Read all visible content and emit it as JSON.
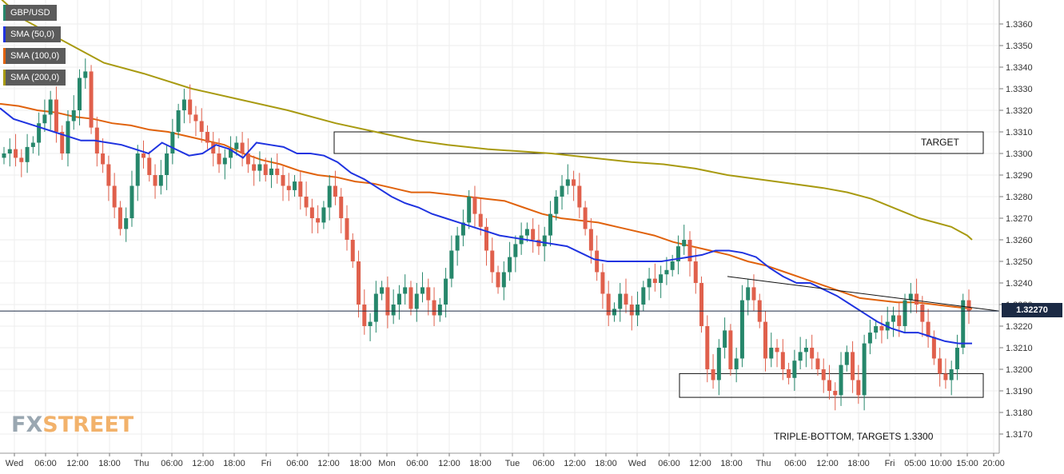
{
  "legend": {
    "symbol": "GBP/USD",
    "sma50": "SMA (50,0)",
    "sma100": "SMA (100,0)",
    "sma200": "SMA (200,0)"
  },
  "colors": {
    "up": "#26876b",
    "down": "#e0604c",
    "sma50": "#1f33e0",
    "sma100": "#e0620c",
    "sma200": "#a89a10",
    "price_line": "#1b2a44"
  },
  "logo": {
    "fx": "FX",
    "street": "STREET"
  },
  "current_price": "1.32270",
  "annotations": {
    "target_label": "TARGET",
    "pattern_label": "TRIPLE-BOTTOM, TARGETS 1.3300"
  },
  "chart_data": {
    "type": "candlestick",
    "symbol": "GBP/USD",
    "timeframe": "hourly",
    "ylim": [
      1.316,
      1.337
    ],
    "y_ticks": [
      "1.3170",
      "1.3180",
      "1.3190",
      "1.3200",
      "1.3210",
      "1.3220",
      "1.3230",
      "1.3240",
      "1.3250",
      "1.3260",
      "1.3270",
      "1.3280",
      "1.3290",
      "1.3300",
      "1.3310",
      "1.3320",
      "1.3330",
      "1.3340",
      "1.3350",
      "1.3360"
    ],
    "x_ticks": [
      "Wed",
      "06:00",
      "12:00",
      "18:00",
      "Thu",
      "06:00",
      "12:00",
      "18:00",
      "Fri",
      "06:00",
      "12:00",
      "18:00",
      "Mon",
      "06:00",
      "12:00",
      "18:00",
      "Tue",
      "06:00",
      "12:00",
      "18:00",
      "Wed",
      "06:00",
      "12:00",
      "18:00",
      "Thu",
      "06:00",
      "12:00",
      "18:00",
      "Fri",
      "05:00",
      "10:00",
      "15:00",
      "20:00"
    ],
    "grid": true,
    "last_price": 1.3227,
    "target_zone": [
      1.33,
      1.331
    ],
    "support_zone": [
      1.3187,
      1.3198
    ],
    "closes": [
      1.33,
      1.3302,
      1.3298,
      1.3296,
      1.3303,
      1.3305,
      1.3314,
      1.3318,
      1.3325,
      1.331,
      1.33,
      1.3315,
      1.332,
      1.3335,
      1.3338,
      1.3312,
      1.33,
      1.3295,
      1.3285,
      1.3275,
      1.3265,
      1.327,
      1.3285,
      1.33,
      1.3298,
      1.329,
      1.3285,
      1.329,
      1.33,
      1.331,
      1.332,
      1.3325,
      1.3318,
      1.3315,
      1.331,
      1.3305,
      1.33,
      1.3295,
      1.3298,
      1.3302,
      1.3305,
      1.33,
      1.3295,
      1.3292,
      1.3295,
      1.329,
      1.3293,
      1.329,
      1.3285,
      1.3283,
      1.3287,
      1.328,
      1.3275,
      1.327,
      1.3268,
      1.3275,
      1.3285,
      1.328,
      1.327,
      1.326,
      1.325,
      1.323,
      1.322,
      1.3222,
      1.3235,
      1.3238,
      1.3225,
      1.323,
      1.3235,
      1.3238,
      1.3228,
      1.3235,
      1.3238,
      1.3232,
      1.3225,
      1.323,
      1.3242,
      1.3255,
      1.3262,
      1.3268,
      1.328,
      1.3272,
      1.3266,
      1.3255,
      1.3245,
      1.3238,
      1.3245,
      1.3252,
      1.3258,
      1.3262,
      1.3265,
      1.326,
      1.3257,
      1.3262,
      1.3272,
      1.328,
      1.3285,
      1.3288,
      1.3285,
      1.3275,
      1.3265,
      1.3255,
      1.3245,
      1.3235,
      1.3225,
      1.3228,
      1.3235,
      1.323,
      1.3225,
      1.323,
      1.3238,
      1.3242,
      1.324,
      1.3244,
      1.3246,
      1.325,
      1.3257,
      1.326,
      1.325,
      1.324,
      1.322,
      1.32,
      1.3195,
      1.321,
      1.3218,
      1.32,
      1.3205,
      1.3232,
      1.3238,
      1.3232,
      1.3222,
      1.3205,
      1.321,
      1.3208,
      1.32,
      1.3196,
      1.3204,
      1.3208,
      1.321,
      1.3205,
      1.32,
      1.3195,
      1.319,
      1.3188,
      1.3202,
      1.3208,
      1.3195,
      1.3188,
      1.3212,
      1.3217,
      1.322,
      1.3218,
      1.3222,
      1.3225,
      1.322,
      1.3232,
      1.3235,
      1.323,
      1.3222,
      1.3215,
      1.3205,
      1.3198,
      1.3195,
      1.32,
      1.321,
      1.3232,
      1.3227
    ],
    "sma50": [
      1.3321,
      1.3316,
      1.3314,
      1.3312,
      1.331,
      1.3308,
      1.3306,
      1.3306,
      1.3305,
      1.3304,
      1.3302,
      1.33,
      1.3305,
      1.3302,
      1.3299,
      1.33,
      1.3304,
      1.3302,
      1.3298,
      1.3305,
      1.3304,
      1.3303,
      1.33,
      1.33,
      1.3299,
      1.3296,
      1.3291,
      1.3288,
      1.3284,
      1.328,
      1.3277,
      1.3275,
      1.3272,
      1.327,
      1.3268,
      1.3266,
      1.3264,
      1.3262,
      1.3261,
      1.326,
      1.3259,
      1.3258,
      1.3257,
      1.3254,
      1.3251,
      1.325,
      1.325,
      1.325,
      1.325,
      1.325,
      1.3251,
      1.3252,
      1.3253,
      1.3255,
      1.3255,
      1.3254,
      1.3252,
      1.3247,
      1.3243,
      1.324,
      1.324,
      1.3237,
      1.3234,
      1.323,
      1.3226,
      1.3222,
      1.3219,
      1.3217,
      1.3217,
      1.3215,
      1.3213,
      1.3212,
      1.3212
    ],
    "sma100": [
      1.3323,
      1.3322,
      1.332,
      1.3319,
      1.3317,
      1.3316,
      1.3314,
      1.3313,
      1.3311,
      1.331,
      1.3308,
      1.3306,
      1.3304,
      1.33,
      1.3297,
      1.3295,
      1.3292,
      1.329,
      1.3289,
      1.3287,
      1.3286,
      1.3284,
      1.3282,
      1.3282,
      1.3281,
      1.328,
      1.3279,
      1.3278,
      1.3275,
      1.3272,
      1.327,
      1.3269,
      1.3268,
      1.3266,
      1.3264,
      1.3262,
      1.3259,
      1.3257,
      1.3255,
      1.3253,
      1.325,
      1.3248,
      1.3245,
      1.3242,
      1.3239,
      1.3236,
      1.3233,
      1.3232,
      1.3231,
      1.3231,
      1.323,
      1.3229,
      1.3228
    ],
    "sma200": [
      1.3372,
      1.3362,
      1.3357,
      1.335,
      1.3342,
      1.3337,
      1.333,
      1.3325,
      1.332,
      1.3314,
      1.331,
      1.3306,
      1.3304,
      1.3302,
      1.3301,
      1.33,
      1.3298,
      1.3296,
      1.3295,
      1.3293,
      1.329,
      1.3288,
      1.3286,
      1.3284,
      1.3282,
      1.3279,
      1.3276,
      1.3273,
      1.327,
      1.3268,
      1.3266,
      1.3264,
      1.3262,
      1.326
    ],
    "sma200_x": [
      0,
      30,
      55,
      90,
      130,
      180,
      240,
      300,
      360,
      420,
      470,
      520,
      560,
      610,
      650,
      690,
      740,
      790,
      830,
      870,
      910,
      950,
      990,
      1030,
      1060,
      1090,
      1110,
      1130,
      1150,
      1170,
      1190,
      1200,
      1210,
      1216
    ],
    "resistance_line": {
      "from": [
        910,
        1.3243
      ],
      "to": [
        1250,
        1.3227
      ]
    },
    "annotations": [
      "TARGET",
      "TRIPLE-BOTTOM, TARGETS 1.3300"
    ]
  }
}
